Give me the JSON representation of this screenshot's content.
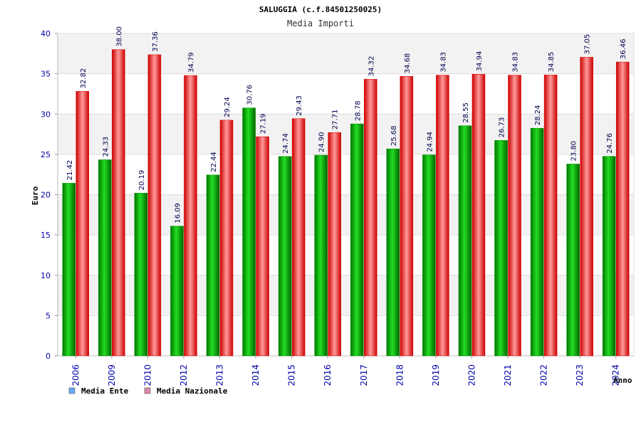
{
  "chart_data": {
    "type": "bar",
    "title": "SALUGGIA (c.f.84501250025)",
    "subtitle": "Media Importi",
    "xlabel": "Anno",
    "ylabel": "Euro",
    "ylim": [
      0,
      40
    ],
    "yticks": [
      0,
      5,
      10,
      15,
      20,
      25,
      30,
      35,
      40
    ],
    "yticks_text": [
      "0",
      "5",
      "10",
      "15",
      "20",
      "25",
      "30",
      "35",
      "40"
    ],
    "categories": [
      "2006",
      "2009",
      "2010",
      "2012",
      "2013",
      "2014",
      "2015",
      "2016",
      "2017",
      "2018",
      "2019",
      "2020",
      "2021",
      "2022",
      "2023",
      "2024"
    ],
    "series": [
      {
        "name": "Media Ente",
        "color": "#00aa00",
        "values": [
          21.42,
          24.33,
          20.19,
          16.09,
          22.44,
          30.76,
          24.74,
          24.9,
          28.78,
          25.68,
          24.94,
          28.55,
          26.73,
          28.24,
          23.8,
          24.76
        ],
        "labels": [
          "21.42",
          "24.33",
          "20.19",
          "16.09",
          "22.44",
          "30.76",
          "24.74",
          "24.90",
          "28.78",
          "25.68",
          "24.94",
          "28.55",
          "26.73",
          "28.24",
          "23.80",
          "24.76"
        ]
      },
      {
        "name": "Media Nazionale",
        "color": "#ee1111",
        "values": [
          32.82,
          38.0,
          37.36,
          34.79,
          29.24,
          27.19,
          29.43,
          27.71,
          34.32,
          34.68,
          34.83,
          34.94,
          34.83,
          34.85,
          37.05,
          36.46
        ],
        "labels": [
          "32.82",
          "38.00",
          "37.36",
          "34.79",
          "29.24",
          "27.19",
          "29.43",
          "27.71",
          "34.32",
          "34.68",
          "34.83",
          "34.94",
          "34.83",
          "34.85",
          "37.05",
          "36.46"
        ]
      }
    ],
    "legend": {
      "placement": "bottom-left",
      "items": [
        {
          "label": "Media Ente",
          "color": "#66aaff"
        },
        {
          "label": "Media Nazionale",
          "color": "#dd88aa"
        }
      ]
    },
    "grid": true
  }
}
